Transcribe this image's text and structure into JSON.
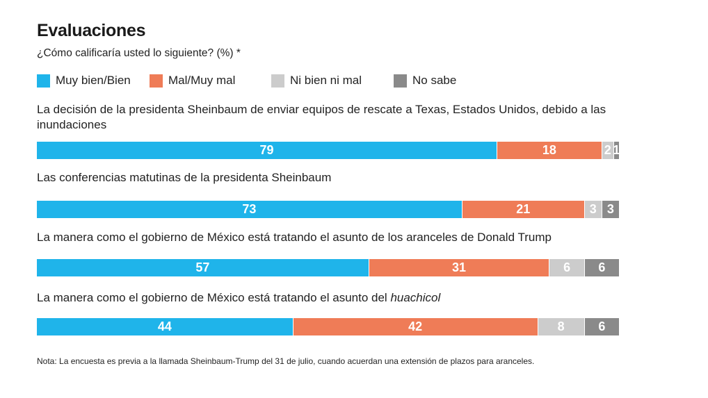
{
  "title": "Evaluaciones",
  "subtitle": "¿Cómo calificaría usted lo siguiente? (%) *",
  "legend": [
    {
      "label": "Muy bien/Bien",
      "color": "#1fb4ea"
    },
    {
      "label": "Mal/Muy mal",
      "color": "#ef7c57"
    },
    {
      "label": "Ni bien ni mal",
      "color": "#cccccc"
    },
    {
      "label": "No sabe",
      "color": "#8a8a8a"
    }
  ],
  "note": "Nota: La encuesta es previa a la llamada Sheinbaum-Trump del 31 de julio, cuando acuerdan una extensión de plazos para aranceles.",
  "chart_data": {
    "type": "bar",
    "orientation": "horizontal",
    "stacked": true,
    "title": "Evaluaciones",
    "subtitle": "¿Cómo calificaría usted lo siguiente? (%) *",
    "categories": [
      "La decisión de la presidenta Sheinbaum de enviar equipos de rescate a Texas, Estados Unidos, debido a las inundaciones",
      "Las conferencias matutinas de la presidenta Sheinbaum",
      "La manera como el gobierno de México está tratando el asunto de los aranceles de Donald Trump",
      "La manera como el gobierno de México está tratando el asunto del huachicol"
    ],
    "series": [
      {
        "name": "Muy bien/Bien",
        "values": [
          79,
          73,
          57,
          44
        ]
      },
      {
        "name": "Mal/Muy mal",
        "values": [
          18,
          21,
          31,
          42
        ]
      },
      {
        "name": "Ni bien ni mal",
        "values": [
          2,
          3,
          6,
          8
        ]
      },
      {
        "name": "No sabe",
        "values": [
          1,
          3,
          6,
          6
        ]
      }
    ],
    "legend_position": "top",
    "grid": false
  }
}
